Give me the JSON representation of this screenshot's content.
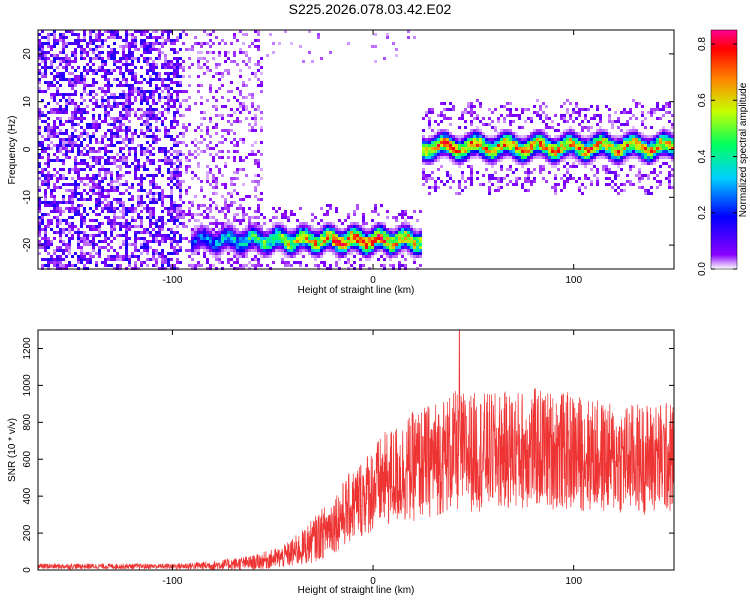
{
  "title": "S225.2026.078.03.42.E02",
  "chart_data": [
    {
      "type": "heatmap",
      "title": "S225.2026.078.03.42.E02",
      "xlabel": "Height of straight line (km)",
      "ylabel": "Frequency (Hz)",
      "xlim": [
        -167,
        150
      ],
      "ylim": [
        -25,
        25
      ],
      "xticks": [
        -100,
        0,
        100
      ],
      "yticks": [
        -20,
        -10,
        0,
        10,
        20
      ],
      "colorbar": {
        "label": "Normalized spectral amplitude",
        "range": [
          0,
          0.85
        ],
        "ticks": [
          "0.0",
          "0.2",
          "0.4",
          "0.6",
          "0.8"
        ],
        "colormap": "rainbow",
        "colors": [
          "#ffffff",
          "#8a00ff",
          "#0000ff",
          "#00d0ff",
          "#00ff60",
          "#c8ff00",
          "#ff8000",
          "#ff0000",
          "#ff0090"
        ]
      },
      "features": [
        {
          "description_x_range": [
            -167,
            -95
          ],
          "freq_range": [
            -25,
            25
          ],
          "level": "low",
          "kind": "broadband noise"
        },
        {
          "description_x_range": [
            -95,
            -55
          ],
          "freq_range": [
            -25,
            25
          ],
          "level": "very low",
          "kind": "sparse noise"
        },
        {
          "description_x_range": [
            -90,
            25
          ],
          "freq_center": -19,
          "freq_width": 3.5,
          "peak_level": 0.8,
          "kind": "signal band"
        },
        {
          "description_x_range": [
            25,
            150
          ],
          "freq_center": 0.5,
          "freq_width": 3.5,
          "peak_level": 0.8,
          "kind": "signal band"
        }
      ],
      "grid": false
    },
    {
      "type": "line",
      "xlabel": "Height of straight line (km)",
      "ylabel": "SNR (10 * v/v)",
      "xlim": [
        -167,
        150
      ],
      "ylim": [
        0,
        1300
      ],
      "xticks": [
        -100,
        0,
        100
      ],
      "yticks": [
        0,
        200,
        400,
        600,
        800,
        1000,
        1200
      ],
      "color": "#ee3333",
      "envelope": [
        {
          "x": -167,
          "mean": 20,
          "spread": 15
        },
        {
          "x": -100,
          "mean": 20,
          "spread": 15
        },
        {
          "x": -80,
          "mean": 25,
          "spread": 25
        },
        {
          "x": -60,
          "mean": 40,
          "spread": 40
        },
        {
          "x": -45,
          "mean": 70,
          "spread": 60
        },
        {
          "x": -35,
          "mean": 120,
          "spread": 100
        },
        {
          "x": -25,
          "mean": 200,
          "spread": 140
        },
        {
          "x": -15,
          "mean": 300,
          "spread": 180
        },
        {
          "x": -5,
          "mean": 400,
          "spread": 220
        },
        {
          "x": 5,
          "mean": 480,
          "spread": 260
        },
        {
          "x": 20,
          "mean": 560,
          "spread": 300
        },
        {
          "x": 40,
          "mean": 640,
          "spread": 330
        },
        {
          "x": 60,
          "mean": 640,
          "spread": 320
        },
        {
          "x": 80,
          "mean": 660,
          "spread": 330
        },
        {
          "x": 100,
          "mean": 640,
          "spread": 320
        },
        {
          "x": 120,
          "mean": 600,
          "spread": 300
        },
        {
          "x": 150,
          "mean": 610,
          "spread": 310
        }
      ],
      "peak": {
        "x": 43,
        "y": 1300
      },
      "grid": false
    }
  ]
}
